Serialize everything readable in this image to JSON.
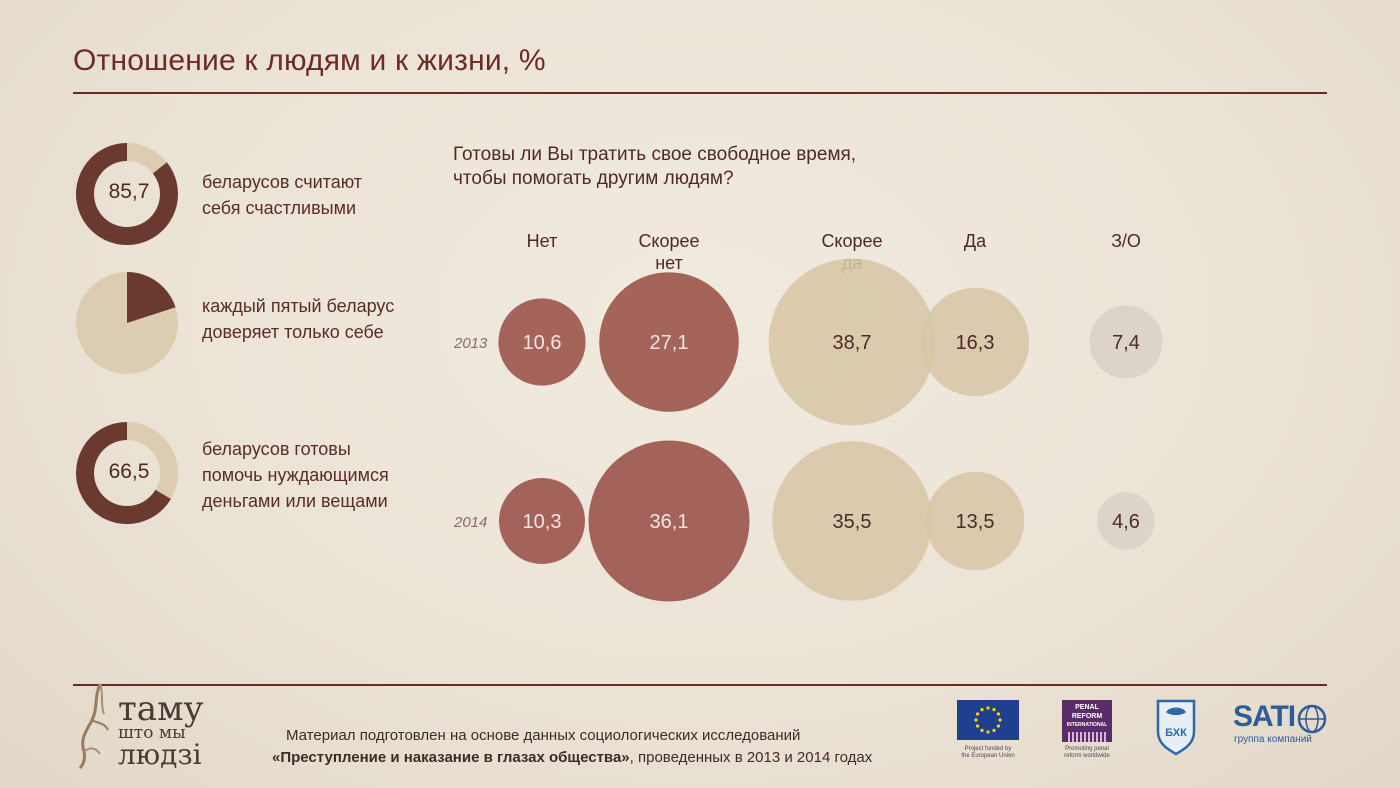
{
  "title": "Отношение к людям и к жизни, %",
  "stats": [
    {
      "value": "85,7",
      "fraction": 0.857,
      "text_line1": "беларусов считают",
      "text_line2": "себя счастливыми"
    },
    {
      "value": "",
      "fraction": 0.2,
      "text_line1": "каждый пятый беларус",
      "text_line2": "доверяет только себе"
    },
    {
      "value": "66,5",
      "fraction": 0.665,
      "text_line1": "беларусов готовы",
      "text_line2": "помочь нуждающимся",
      "text_line3": "деньгами или вещами"
    }
  ],
  "question": {
    "line1": "Готовы ли Вы тратить свое свободное время,",
    "line2": "чтобы помогать другим людям?"
  },
  "chart_data": {
    "type": "bubble",
    "title": "Готовы ли Вы тратить свое свободное время, чтобы помогать другим людям?",
    "categories": [
      "Нет",
      "Скорее нет",
      "Скорее да",
      "Да",
      "З/О"
    ],
    "category_lines": [
      [
        "Нет"
      ],
      [
        "Скорее",
        "нет"
      ],
      [
        "Скорее",
        "да"
      ],
      [
        "Да"
      ],
      [
        "З/О"
      ]
    ],
    "series": [
      {
        "name": "2013",
        "values": [
          10.6,
          27.1,
          38.7,
          16.3,
          7.4
        ],
        "labels": [
          "10,6",
          "27,1",
          "38,7",
          "16,3",
          "7,4"
        ]
      },
      {
        "name": "2014",
        "values": [
          10.3,
          36.1,
          35.5,
          13.5,
          4.6
        ],
        "labels": [
          "10,3",
          "36,1",
          "35,5",
          "13,5",
          "4,6"
        ]
      }
    ],
    "unit": "%"
  },
  "footer": {
    "brand_line1": "таму",
    "brand_line2": "што мы",
    "brand_line3": "людзі",
    "note_line1": "Материал подготовлен на основе данных социологических исследований",
    "note_bold": "«Преступление и наказание в глазах общества»",
    "note_rest": ", проведенных в 2013 и 2014 годах",
    "eu_caption1": "Project funded by",
    "eu_caption2": "the European Union",
    "pri_name1": "PENAL",
    "pri_name2": "REFORM",
    "pri_name3": "INTERNATIONAL",
    "pri_caption1": "Promoting penal",
    "pri_caption2": "reform worldwide",
    "bhk_text": "БХК",
    "sati_name": "SATI",
    "sati_caption": "группа компаний"
  },
  "colors": {
    "dark": "#6a3a30",
    "light": "#dccdb2",
    "bubble_dark": "#9a5148",
    "bubble_light": "#d8c6a6",
    "bubble_grey": "#d9d2c7",
    "accent": "#6e2a25"
  }
}
